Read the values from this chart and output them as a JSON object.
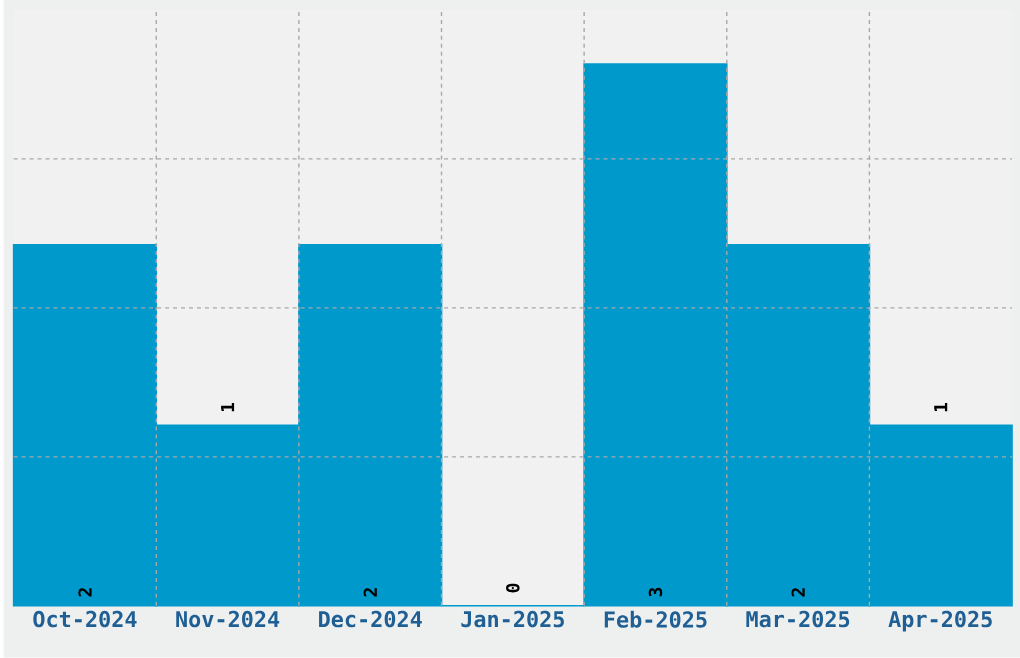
{
  "chart_data": {
    "type": "bar",
    "categories": [
      "Oct-2024",
      "Nov-2024",
      "Dec-2024",
      "Jan-2025",
      "Feb-2025",
      "Mar-2025",
      "Apr-2025"
    ],
    "values": [
      2,
      1,
      2,
      0,
      3,
      2,
      1
    ],
    "color": "#0099cc",
    "ylim": [
      0,
      3.3
    ],
    "yticks": [
      {
        "value": 0.825,
        "label": null
      },
      {
        "value": 1.65,
        "label": null
      },
      {
        "value": 2.475,
        "label": null
      }
    ],
    "tick_labels": "x",
    "grid": true,
    "data_labels": true
  }
}
